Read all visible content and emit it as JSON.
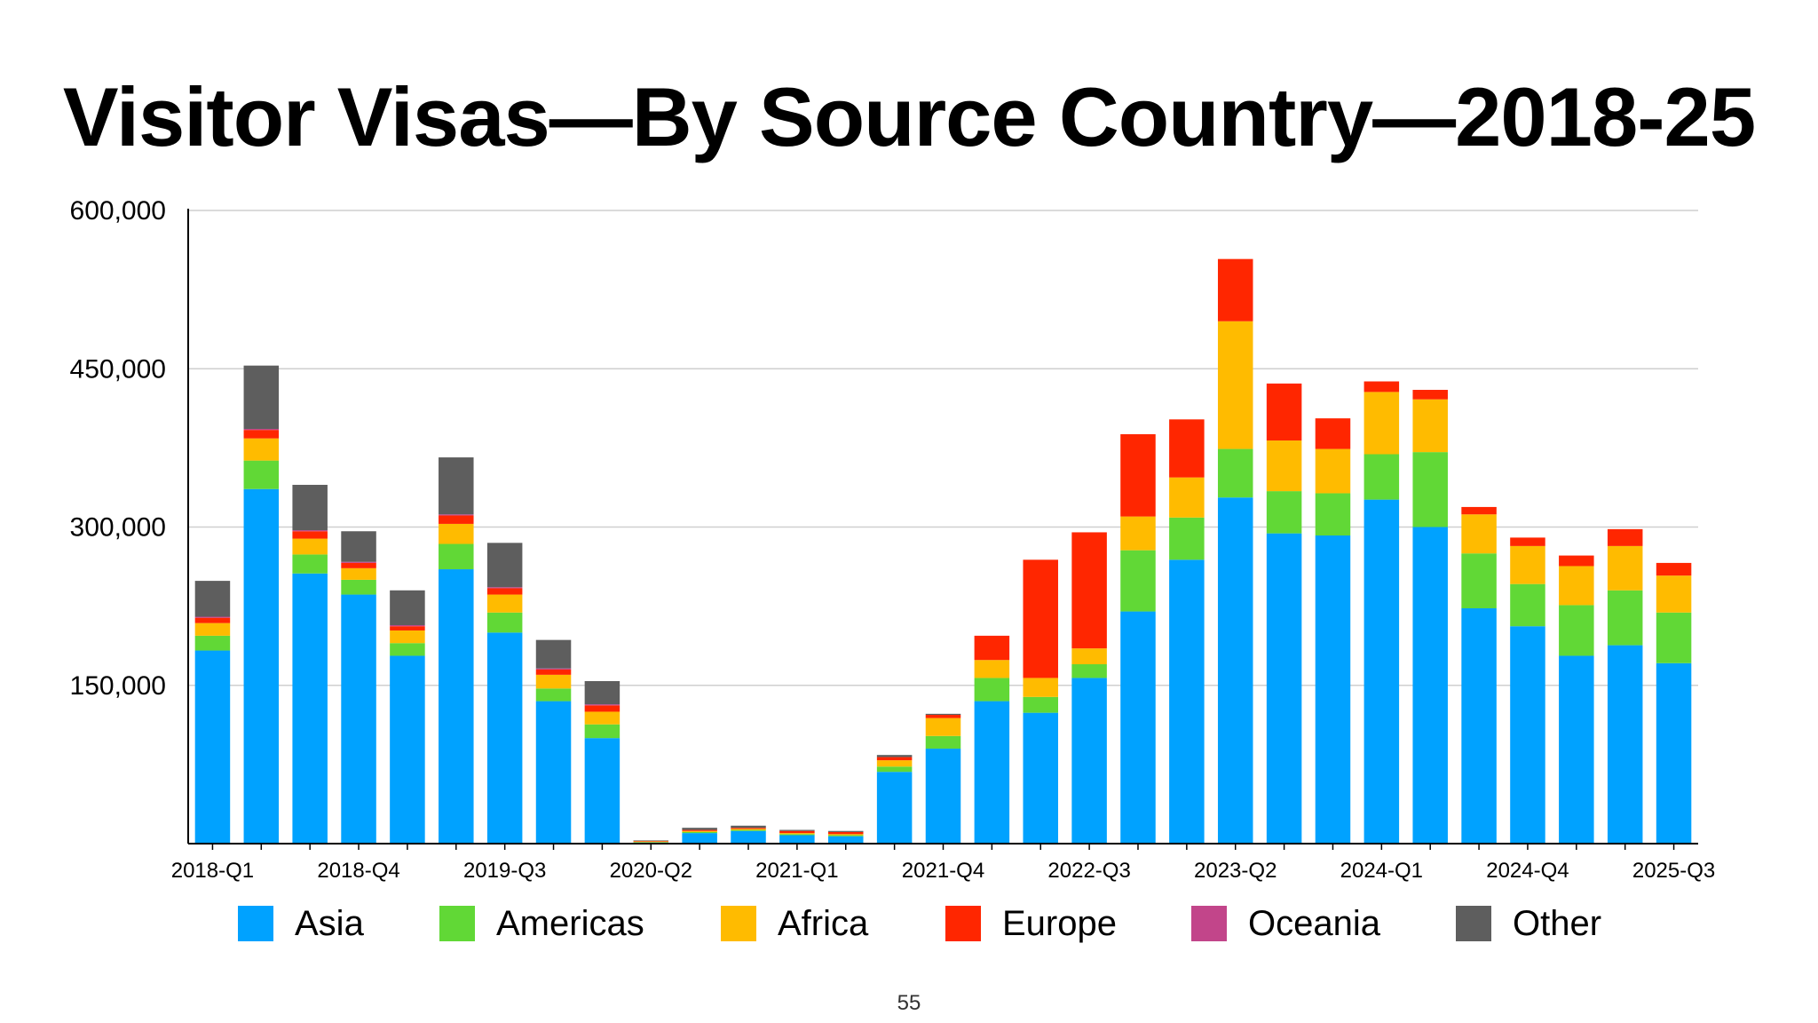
{
  "slide": {
    "title": "Visitor Visas—By Source Country—2018-25",
    "page_number": "55"
  },
  "chart_data": {
    "type": "bar",
    "stacked": true,
    "title": "Visitor Visas—By Source Country—2018-25",
    "xlabel": "",
    "ylabel": "",
    "ylim": [
      0,
      600000
    ],
    "yticks": [
      150000,
      300000,
      450000,
      600000
    ],
    "ytick_labels": [
      "150,000",
      "300,000",
      "450,000",
      "600,000"
    ],
    "xtick_labels_shown": [
      "2018-Q1",
      "2018-Q4",
      "2019-Q3",
      "2020-Q2",
      "2021-Q1",
      "2021-Q4",
      "2022-Q3",
      "2023-Q2",
      "2024-Q1",
      "2024-Q4",
      "2025-Q3"
    ],
    "grid": true,
    "legend_position": "bottom",
    "categories": [
      "2018-Q1",
      "2018-Q2",
      "2018-Q3",
      "2018-Q4",
      "2019-Q1",
      "2019-Q2",
      "2019-Q3",
      "2019-Q4",
      "2020-Q1",
      "2020-Q2",
      "2020-Q3",
      "2020-Q4",
      "2021-Q1",
      "2021-Q2",
      "2021-Q3",
      "2021-Q4",
      "2022-Q1",
      "2022-Q2",
      "2022-Q3",
      "2022-Q4",
      "2023-Q1",
      "2023-Q2",
      "2023-Q3",
      "2023-Q4",
      "2024-Q1",
      "2024-Q2",
      "2024-Q3",
      "2024-Q4",
      "2025-Q1",
      "2025-Q2",
      "2025-Q3"
    ],
    "series": [
      {
        "name": "Asia",
        "color": "#00A2FF",
        "values": [
          183000,
          336000,
          256000,
          236000,
          178000,
          260000,
          200000,
          135000,
          100000,
          1000,
          10000,
          12000,
          8000,
          7000,
          68000,
          90000,
          135000,
          124000,
          157000,
          220000,
          269000,
          328000,
          294000,
          292000,
          326000,
          300000,
          223000,
          206000,
          178000,
          188000,
          171000
        ]
      },
      {
        "name": "Americas",
        "color": "#61D836",
        "values": [
          14000,
          27000,
          18000,
          14000,
          12000,
          24000,
          19000,
          12000,
          13000,
          500,
          1000,
          1000,
          1000,
          1000,
          5000,
          12000,
          22000,
          15000,
          13000,
          58000,
          40000,
          46000,
          40000,
          40000,
          43000,
          71000,
          52000,
          40000,
          48000,
          52000,
          48000
        ]
      },
      {
        "name": "Africa",
        "color": "#FFBB00",
        "values": [
          12000,
          21000,
          15000,
          11000,
          12000,
          19000,
          17000,
          13000,
          12000,
          500,
          1000,
          1000,
          1000,
          1000,
          6000,
          17000,
          17000,
          18000,
          15000,
          32000,
          38000,
          121000,
          48000,
          42000,
          59000,
          50000,
          37000,
          36000,
          37000,
          42000,
          35000
        ]
      },
      {
        "name": "Europe",
        "color": "#FF2600",
        "values": [
          5000,
          8000,
          7000,
          5000,
          4000,
          8000,
          6000,
          5000,
          6000,
          500,
          1000,
          1000,
          2000,
          2000,
          3000,
          3000,
          23000,
          112000,
          110000,
          78000,
          55000,
          59000,
          54000,
          29000,
          10000,
          9000,
          7000,
          8000,
          10000,
          16000,
          12000
        ]
      },
      {
        "name": "Oceania",
        "color": "#C2458A",
        "values": [
          1000,
          1000,
          1000,
          1000,
          1000,
          1000,
          1000,
          1000,
          1000,
          0,
          0,
          0,
          0,
          0,
          0,
          0,
          0,
          0,
          0,
          0,
          0,
          0,
          0,
          0,
          0,
          0,
          0,
          0,
          0,
          0,
          0
        ]
      },
      {
        "name": "Other",
        "color": "#5E5E5E",
        "values": [
          34000,
          60000,
          43000,
          29000,
          33000,
          54000,
          42000,
          27000,
          22000,
          500,
          2000,
          2000,
          1000,
          1000,
          2000,
          1000,
          0,
          0,
          0,
          0,
          0,
          0,
          0,
          0,
          0,
          0,
          0,
          0,
          0,
          0,
          0
        ]
      }
    ]
  }
}
